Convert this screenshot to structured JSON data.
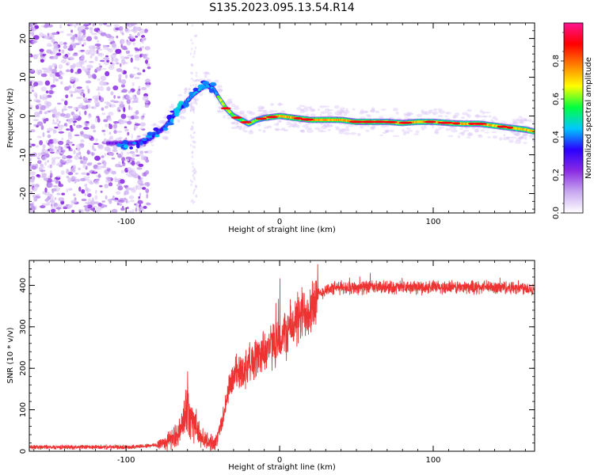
{
  "figure_title": "S135.2023.095.13.54.R14",
  "chart_data": [
    {
      "type": "heatmap",
      "title": "S135.2023.095.13.54.R14",
      "xlabel": "Height of straight line (km)",
      "ylabel": "Frequency (Hz)",
      "xlim": [
        -163,
        166
      ],
      "ylim": [
        -25,
        24
      ],
      "xticks": [
        -100,
        0,
        100
      ],
      "yticks": [
        -20,
        -10,
        0,
        10,
        20
      ],
      "grid": false,
      "colorbar": {
        "label": "Normalized spectral amplitude",
        "range": [
          0.0,
          1.0
        ],
        "ticks": [
          0.0,
          0.2,
          0.4,
          0.6,
          0.8
        ],
        "colormap": [
          "#ffffff",
          "#c8a8f0",
          "#8a2be2",
          "#2a00ff",
          "#00c8ff",
          "#00ff40",
          "#ffff00",
          "#ff8000",
          "#ff0000",
          "#ff1493"
        ]
      },
      "ridge": {
        "x": [
          -110,
          -95,
          -85,
          -75,
          -65,
          -55,
          -48,
          -43,
          -40,
          -35,
          -30,
          -25,
          -20,
          -15,
          -10,
          0,
          10,
          20,
          30,
          40,
          50,
          60,
          70,
          80,
          90,
          100,
          110,
          120,
          130,
          140,
          150,
          160,
          166
        ],
        "y": [
          -7,
          -7,
          -6,
          -3,
          2,
          6,
          8,
          7,
          5,
          2,
          0,
          -1,
          -2,
          -1,
          -0.5,
          0,
          -0.5,
          -1,
          -1,
          -1,
          -1.5,
          -1.5,
          -1.5,
          -1.8,
          -1.5,
          -1.5,
          -1.8,
          -2,
          -2,
          -2.5,
          -3,
          -3.5,
          -4
        ]
      }
    },
    {
      "type": "line",
      "xlabel": "Height of straight line (km)",
      "ylabel": "SNR (10 * v/v)",
      "xlim": [
        -163,
        166
      ],
      "ylim": [
        0,
        460
      ],
      "xticks": [
        -100,
        0,
        100
      ],
      "yticks": [
        0,
        100,
        200,
        300,
        400
      ],
      "grid": false,
      "series": [
        {
          "name": "SNR",
          "color": "#ee3333",
          "x": [
            -163,
            -140,
            -120,
            -100,
            -90,
            -80,
            -75,
            -70,
            -65,
            -62,
            -60,
            -58,
            -55,
            -52,
            -50,
            -47,
            -45,
            -42,
            -40,
            -37,
            -35,
            -32,
            -30,
            -28,
            -25,
            -22,
            -20,
            -15,
            -10,
            -5,
            0,
            5,
            10,
            15,
            20,
            25,
            30,
            40,
            50,
            60,
            70,
            80,
            90,
            100,
            110,
            120,
            130,
            140,
            150,
            160,
            166
          ],
          "values": [
            10,
            10,
            10,
            10,
            12,
            15,
            22,
            30,
            45,
            80,
            110,
            90,
            60,
            40,
            30,
            25,
            20,
            20,
            40,
            80,
            120,
            160,
            180,
            190,
            195,
            200,
            215,
            225,
            245,
            255,
            265,
            290,
            310,
            330,
            350,
            375,
            390,
            395,
            395,
            395,
            395,
            395,
            395,
            395,
            395,
            395,
            395,
            395,
            395,
            395,
            390
          ]
        }
      ]
    }
  ]
}
